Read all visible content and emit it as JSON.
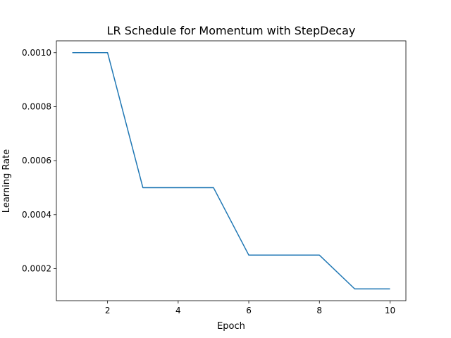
{
  "chart_data": {
    "type": "line",
    "title": "LR Schedule for Momentum with StepDecay",
    "xlabel": "Epoch",
    "ylabel": "Learning Rate",
    "x": [
      1,
      2,
      3,
      4,
      5,
      6,
      7,
      8,
      9,
      10
    ],
    "series": [
      {
        "values": [
          0.001,
          0.001,
          0.0005,
          0.0005,
          0.0005,
          0.00025,
          0.00025,
          0.00025,
          0.000125,
          0.000125
        ],
        "color": "#1f77b4"
      }
    ],
    "xlim": [
      0.55,
      10.45
    ],
    "ylim": [
      8.125e-05,
      0.00104375
    ],
    "xticks": [
      2,
      4,
      6,
      8,
      10
    ],
    "xtick_labels": [
      "2",
      "4",
      "6",
      "8",
      "10"
    ],
    "yticks": [
      0.0002,
      0.0004,
      0.0006,
      0.0008,
      0.001
    ],
    "ytick_labels": [
      "0.0002",
      "0.0004",
      "0.0006",
      "0.0008",
      "0.0010"
    ],
    "grid": false,
    "legend": false
  }
}
